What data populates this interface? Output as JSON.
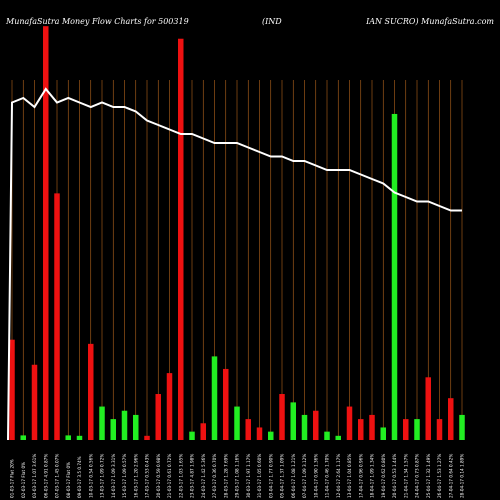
{
  "chart_data": {
    "type": "bar",
    "title_left": "MunafaSutra  Money Flow  Charts for 500319",
    "title_mid": "(IND",
    "title_right": "IAN  SUCRO) MunafaSutra.com",
    "categories": [
      "01-03-17 Flat 20%",
      "02-03-17 Flat 0%",
      "03-03-17 1.07 3.61%",
      "06-03-17 4.91 0.87%",
      "07-03-17 1.45 0.07%",
      "08-03-17 Flat 0%",
      "09-03-17 3.5 0.74%",
      "10-03-17 0.54 0.56%",
      "13-03-17 1.09 0.72%",
      "14-03-17 1.09 3.31%",
      "15-03-17 1.09 0.57%",
      "16-03-17 1.20 2.96%",
      "17-03-17 0.53 0.43%",
      "20-03-17 0.59 0.98%",
      "21-03-17 0.61 0.72%",
      "22-03-17 1.03 1.65%",
      "23-03-17 4.87 1.98%",
      "24-03-17 1.42 5.36%",
      "27-03-17 0.36 0.70%",
      "28-03-17 1.28 7.69%",
      "29-03-17 1.08 1.16%",
      "30-03-17 1.97 1.17%",
      "31-03-17 1.05 0.60%",
      "03-04-17 1.77 0.90%",
      "05-04-17 1.37 1.09%",
      "06-04-17 1.08 1.21%",
      "07-04-17 1.09 3.12%",
      "10-04-17 0.90 1.36%",
      "11-04-17 0.46 1.70%",
      "12-04-17 2.64 1.17%",
      "13-04-17 1.04 0.85%",
      "17-04-17 0.96 0.96%",
      "18-04-17 1.09 1.34%",
      "19-04-17 0.62 0.80%",
      "20-04-17 0.53 1.44%",
      "21-04-17 1.34 1.57%",
      "24-04-17 0.73 0.87%",
      "25-04-17 1.32 1.49%",
      "26-04-17 1.53 1.27%",
      "27-04-17 0.64 0.42%",
      "28-04-17 0.14 1.89%"
    ],
    "values": [
      0.24,
      0.011,
      0.18,
      0.99,
      0.59,
      0.011,
      0.01,
      0.23,
      0.08,
      0.05,
      0.07,
      0.06,
      0.01,
      0.11,
      0.16,
      0.96,
      0.02,
      0.04,
      0.2,
      0.17,
      0.08,
      0.05,
      0.03,
      0.02,
      0.11,
      0.09,
      0.06,
      0.07,
      0.02,
      0.01,
      0.08,
      0.05,
      0.06,
      0.03,
      0.78,
      0.05,
      0.05,
      0.15,
      0.05,
      0.1,
      0.06
    ],
    "directions": [
      "down",
      "up",
      "down",
      "down",
      "down",
      "up",
      "up",
      "down",
      "up",
      "up",
      "up",
      "up",
      "down",
      "down",
      "down",
      "down",
      "up",
      "down",
      "up",
      "down",
      "up",
      "down",
      "down",
      "up",
      "down",
      "up",
      "up",
      "down",
      "up",
      "up",
      "down",
      "down",
      "down",
      "up",
      "up",
      "down",
      "up",
      "down",
      "down",
      "down",
      "up"
    ],
    "price_line": [
      75,
      76,
      74,
      78,
      75,
      76,
      75,
      74,
      75,
      74,
      74,
      73,
      71,
      70,
      69,
      68,
      68,
      67,
      66,
      66,
      66,
      65,
      64,
      63,
      63,
      62,
      62,
      61,
      60,
      60,
      60,
      59,
      58,
      57,
      55,
      54,
      53,
      53,
      52,
      51,
      51
    ],
    "bar_max": 1.0,
    "price_range": [
      0,
      80
    ],
    "grid": true,
    "colors": {
      "background": "#000000",
      "up": "#22ee22",
      "down": "#ee1111",
      "grid": "#b5651d",
      "price": "#ffffff",
      "text": "#ffffff"
    }
  }
}
